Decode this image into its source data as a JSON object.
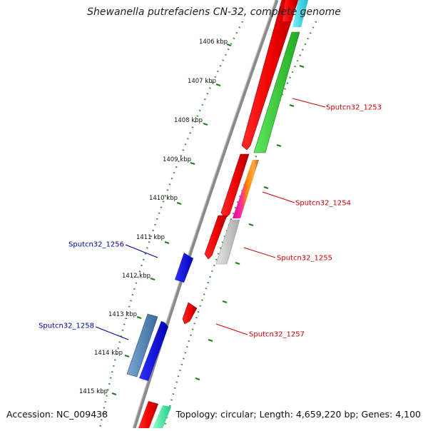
{
  "title": "Shewanella putrefaciens CN-32, complete genome",
  "footer": {
    "accession": "Accession: NC_009438",
    "topology": "Topology: circular; Length: 4,659,220 bp; Genes: 4,100"
  },
  "colors": {
    "backbone": "#8a8a8a",
    "ruler": "#2e8b2e",
    "label_forward": "#cc0000",
    "label_reverse": "#000099"
  },
  "ticks_kbp": [
    "1406 kbp",
    "1407 kbp",
    "1408 kbp",
    "1409 kbp",
    "1410 kbp",
    "1411 kbp",
    "1412 kbp",
    "1413 kbp",
    "1414 kbp",
    "1415 kbp"
  ],
  "gene_labels": {
    "g1253": "Sputcn32_1253",
    "g1254": "Sputcn32_1254",
    "g1255": "Sputcn32_1255",
    "g1256": "Sputcn32_1256",
    "g1257": "Sputcn32_1257",
    "g1258": "Sputcn32_1258"
  }
}
